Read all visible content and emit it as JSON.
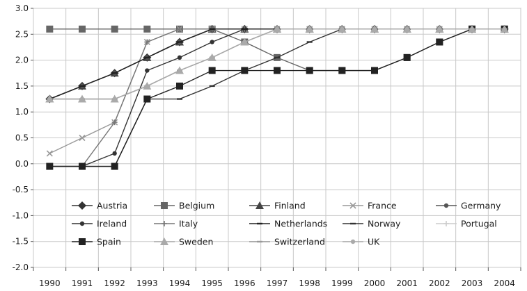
{
  "chart_data": {
    "type": "line",
    "title": "",
    "xlabel": "",
    "ylabel": "",
    "x": [
      "1990",
      "1991",
      "1992",
      "1993",
      "1994",
      "1995",
      "1996",
      "1997",
      "1998",
      "1999",
      "2000",
      "2001",
      "2002",
      "2003",
      "2004"
    ],
    "ylim": [
      -2.0,
      3.0
    ],
    "yticks": [
      "3.0",
      "2.5",
      "2.0",
      "1.5",
      "1.0",
      "0.5",
      "0.0",
      "-0.5",
      "-1.0",
      "-1.5",
      "-2.0"
    ],
    "grid": true,
    "legend_position": "inside-bottom",
    "series": [
      {
        "name": "Austria",
        "color": "#333333",
        "marker": "diamond",
        "values": [
          1.25,
          1.5,
          1.75,
          2.05,
          2.35,
          2.6,
          2.6,
          2.6,
          2.6,
          2.6,
          2.6,
          2.6,
          2.6,
          2.6,
          2.6
        ]
      },
      {
        "name": "Belgium",
        "color": "#666666",
        "marker": "square",
        "values": [
          2.6,
          2.6,
          2.6,
          2.6,
          2.6,
          2.6,
          2.35,
          2.05,
          1.8,
          1.8,
          1.8,
          2.05,
          2.35,
          2.6,
          2.6
        ]
      },
      {
        "name": "Finland",
        "color": "#444444",
        "marker": "triangle",
        "values": [
          1.25,
          1.5,
          1.75,
          2.05,
          2.35,
          2.6,
          2.6,
          2.6,
          2.6,
          2.6,
          2.6,
          2.6,
          2.6,
          2.6,
          2.6
        ]
      },
      {
        "name": "France",
        "color": "#999999",
        "marker": "x",
        "values": [
          0.2,
          0.5,
          0.8,
          2.35,
          2.6,
          2.6,
          2.6,
          2.6,
          2.6,
          2.6,
          2.6,
          2.6,
          2.6,
          2.6,
          2.6
        ]
      },
      {
        "name": "Germany",
        "color": "#555555",
        "marker": "circle",
        "values": [
          1.25,
          1.5,
          1.75,
          2.05,
          2.35,
          2.6,
          2.6,
          2.6,
          2.6,
          2.6,
          2.6,
          2.6,
          2.6,
          2.6,
          2.6
        ]
      },
      {
        "name": "Ireland",
        "color": "#333333",
        "marker": "circle",
        "values": [
          -0.05,
          -0.05,
          0.2,
          1.8,
          2.05,
          2.35,
          2.6,
          2.6,
          2.6,
          2.6,
          2.6,
          2.6,
          2.6,
          2.6,
          2.6
        ]
      },
      {
        "name": "Italy",
        "color": "#777777",
        "marker": "plus",
        "values": [
          -0.05,
          -0.05,
          0.8,
          2.35,
          2.6,
          2.6,
          2.6,
          2.6,
          2.6,
          2.6,
          2.6,
          2.6,
          2.6,
          2.6,
          2.6
        ]
      },
      {
        "name": "Netherlands",
        "color": "#222222",
        "marker": "dash",
        "values": [
          1.25,
          1.5,
          1.75,
          2.05,
          2.35,
          2.6,
          2.6,
          2.6,
          2.6,
          2.6,
          2.6,
          2.6,
          2.6,
          2.6,
          2.6
        ]
      },
      {
        "name": "Norway",
        "color": "#333333",
        "marker": "dash",
        "values": [
          -0.05,
          -0.05,
          -0.05,
          1.25,
          1.25,
          1.5,
          1.8,
          2.05,
          2.35,
          2.6,
          2.6,
          2.6,
          2.6,
          2.6,
          2.6
        ]
      },
      {
        "name": "Portugal",
        "color": "#cccccc",
        "marker": "plus",
        "values": [
          1.25,
          1.25,
          1.25,
          1.5,
          1.8,
          2.05,
          2.35,
          2.6,
          2.6,
          2.6,
          2.6,
          2.6,
          2.6,
          2.6,
          2.6
        ]
      },
      {
        "name": "Spain",
        "color": "#222222",
        "marker": "square",
        "values": [
          -0.05,
          -0.05,
          -0.05,
          1.25,
          1.5,
          1.8,
          1.8,
          1.8,
          1.8,
          1.8,
          1.8,
          2.05,
          2.35,
          2.6,
          2.6
        ]
      },
      {
        "name": "Sweden",
        "color": "#aaaaaa",
        "marker": "triangle",
        "values": [
          1.25,
          1.25,
          1.25,
          1.5,
          1.8,
          2.05,
          2.35,
          2.6,
          2.6,
          2.6,
          2.6,
          2.6,
          2.6,
          2.6,
          2.6
        ]
      },
      {
        "name": "Switzerland",
        "color": "#999999",
        "marker": "dash",
        "values": [
          1.25,
          1.25,
          1.25,
          1.5,
          1.8,
          2.05,
          2.35,
          2.6,
          2.6,
          2.6,
          2.6,
          2.6,
          2.6,
          2.6,
          2.6
        ]
      },
      {
        "name": "UK",
        "color": "#aaaaaa",
        "marker": "circle",
        "values": [
          1.25,
          1.25,
          1.25,
          1.5,
          1.8,
          2.05,
          2.35,
          2.6,
          2.6,
          2.6,
          2.6,
          2.6,
          2.6,
          2.6,
          2.6
        ]
      }
    ]
  }
}
